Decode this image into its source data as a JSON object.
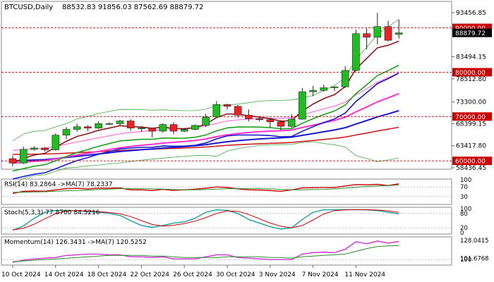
{
  "header": {
    "symbol": "BTCUSD,Daily",
    "ohlc": "88532.83 91856.03 87562.69 88879.72"
  },
  "colors": {
    "up_body": "#22bb22",
    "down_body": "#ee2222",
    "wick": "#222222",
    "ma_fast": "#8b1a1a",
    "ma_mid": "#1fa01f",
    "ma_slow": "#1a1acc",
    "ma_pink": "#ff33cc",
    "ma_red_long": "#cc2222",
    "band_upper": "#44aa44",
    "band_lower": "#44aa44",
    "band_mid": "#cc2222",
    "rsi_line": "#cc0000",
    "rsi_ma": "#2e8b2e",
    "stoch_main": "#1f9e9e",
    "stoch_signal": "#cc0000",
    "mom_line": "#cc33cc",
    "mom_ma": "#2e8b2e",
    "hline_red": "#cc0000",
    "label_red_bg": "#cc0000",
    "label_black_bg": "#000000"
  },
  "chart_data": [
    {
      "type": "candlestick",
      "title": "BTCUSD,Daily",
      "dates": [
        "2024-10-10",
        "2024-10-11",
        "2024-10-12",
        "2024-10-13",
        "2024-10-14",
        "2024-10-15",
        "2024-10-16",
        "2024-10-17",
        "2024-10-18",
        "2024-10-19",
        "2024-10-20",
        "2024-10-21",
        "2024-10-22",
        "2024-10-23",
        "2024-10-24",
        "2024-10-25",
        "2024-10-26",
        "2024-10-27",
        "2024-10-28",
        "2024-10-29",
        "2024-10-30",
        "2024-10-31",
        "2024-11-01",
        "2024-11-02",
        "2024-11-03",
        "2024-11-04",
        "2024-11-05",
        "2024-11-06",
        "2024-11-07",
        "2024-11-08",
        "2024-11-09",
        "2024-11-10",
        "2024-11-11",
        "2024-11-12",
        "2024-11-13",
        "2024-11-14",
        "2024-11-15"
      ],
      "candles": [
        [
          60500,
          61200,
          58800,
          59500
        ],
        [
          59500,
          63200,
          59300,
          62600
        ],
        [
          62600,
          63300,
          62300,
          62900
        ],
        [
          62900,
          63100,
          62100,
          62500
        ],
        [
          62500,
          66200,
          62300,
          65800
        ],
        [
          65800,
          67600,
          64900,
          67100
        ],
        [
          67100,
          68400,
          66600,
          67700
        ],
        [
          67700,
          68000,
          66700,
          67400
        ],
        [
          67400,
          68900,
          67200,
          68400
        ],
        [
          68400,
          68700,
          68100,
          68400
        ],
        [
          68400,
          69300,
          68000,
          69000
        ],
        [
          69000,
          69400,
          66800,
          67400
        ],
        [
          67400,
          67800,
          66600,
          67400
        ],
        [
          67400,
          67500,
          65300,
          66700
        ],
        [
          66700,
          68500,
          66400,
          68200
        ],
        [
          68200,
          68700,
          66000,
          66700
        ],
        [
          66700,
          67400,
          66500,
          67100
        ],
        [
          67100,
          68200,
          66900,
          68000
        ],
        [
          68000,
          70600,
          67600,
          69900
        ],
        [
          69900,
          73500,
          69800,
          72700
        ],
        [
          72700,
          72900,
          71600,
          72300
        ],
        [
          72300,
          72600,
          69700,
          70300
        ],
        [
          70300,
          71600,
          68900,
          69500
        ],
        [
          69500,
          69900,
          68900,
          69300
        ],
        [
          69300,
          69600,
          67500,
          68800
        ],
        [
          68800,
          69200,
          66900,
          67800
        ],
        [
          67800,
          70500,
          67500,
          69400
        ],
        [
          69400,
          76400,
          69300,
          75600
        ],
        [
          75600,
          76900,
          74600,
          75900
        ],
        [
          75900,
          77200,
          75600,
          76500
        ],
        [
          76500,
          76800,
          75800,
          76700
        ],
        [
          76700,
          81400,
          76500,
          80400
        ],
        [
          80400,
          89600,
          80200,
          88700
        ],
        [
          88700,
          89900,
          85100,
          87900
        ],
        [
          87900,
          93400,
          86300,
          90300
        ],
        [
          90300,
          91600,
          87000,
          87200
        ],
        [
          88532.83,
          91856.03,
          87562.69,
          88879.72
        ]
      ],
      "yticks": [
        "93456.85",
        "90000.00",
        "88879.72",
        "83494.15",
        "80000.00",
        "78512.80",
        "73300.00",
        "70000.00",
        "68399.15",
        "63417.80",
        "60000.00",
        "58436.45"
      ],
      "hlines": [
        {
          "value": 90000,
          "label": "90000.00"
        },
        {
          "value": 80000,
          "label": "80000.00"
        },
        {
          "value": 70000,
          "label": "70000.00"
        },
        {
          "value": 60000,
          "label": "60000.00"
        }
      ],
      "current_price": {
        "value": 88879.72,
        "label": "88879.72"
      },
      "ylim": [
        58436.45,
        95500
      ]
    },
    {
      "type": "line",
      "title": "RSI(14) 83.2864 ->MA(7) 78.2337",
      "yticks": [
        "100",
        "70",
        "30"
      ],
      "ylim": [
        0,
        100
      ],
      "series": [
        {
          "name": "RSI(14)",
          "values": [
            43,
            52,
            53,
            52,
            58,
            63,
            64,
            62,
            65,
            65,
            66,
            58,
            58,
            55,
            60,
            56,
            58,
            61,
            65,
            70,
            68,
            62,
            58,
            57,
            55,
            52,
            58,
            66,
            67,
            68,
            68,
            74,
            80,
            79,
            81,
            76,
            83.2864
          ]
        },
        {
          "name": "MA(7)",
          "values": [
            48,
            48,
            49,
            50,
            52,
            54,
            55,
            57,
            59,
            61,
            63,
            63,
            63,
            62,
            61,
            59,
            58,
            58,
            59,
            61,
            63,
            63,
            63,
            63,
            62,
            60,
            58,
            58,
            59,
            60,
            62,
            65,
            69,
            72,
            74,
            76,
            78.2337
          ]
        }
      ]
    },
    {
      "type": "line",
      "title": "Stoch(5,3,3) 77.8700 84.5216",
      "yticks": [
        "100",
        "80",
        "20",
        "0"
      ],
      "ylim": [
        0,
        100
      ],
      "series": [
        {
          "name": "Stoch %K",
          "values": [
            10,
            28,
            60,
            85,
            93,
            92,
            91,
            88,
            85,
            80,
            72,
            50,
            30,
            22,
            30,
            40,
            45,
            60,
            85,
            95,
            93,
            80,
            55,
            40,
            25,
            15,
            20,
            55,
            85,
            95,
            96,
            96,
            96,
            95,
            92,
            85,
            77.87
          ]
        },
        {
          "name": "Stoch %D",
          "values": [
            12,
            18,
            35,
            58,
            79,
            90,
            92,
            90,
            88,
            84,
            79,
            67,
            50,
            34,
            27,
            31,
            38,
            48,
            63,
            80,
            91,
            89,
            76,
            58,
            40,
            27,
            20,
            30,
            53,
            78,
            92,
            95,
            96,
            96,
            94,
            91,
            84.5216
          ]
        }
      ]
    },
    {
      "type": "line",
      "title": "Momentum(14) 126.3431 ->MA(7) 120.5252",
      "yticks": [
        "128.0415",
        "100",
        "101.6768"
      ],
      "ylim": [
        94,
        131
      ],
      "series": [
        {
          "name": "Momentum(14)",
          "values": [
            96,
            99,
            101,
            102,
            103,
            106,
            107,
            108,
            108,
            107,
            107,
            104,
            104,
            103,
            104,
            101,
            101,
            101,
            104,
            107,
            107,
            103,
            102,
            101,
            100,
            100,
            100,
            108,
            110,
            111,
            110,
            115,
            126,
            123,
            127,
            124,
            126.3431
          ]
        },
        {
          "name": "MA(7)",
          "values": [
            97,
            98,
            99,
            100,
            101,
            102,
            103,
            104,
            105,
            106,
            106,
            106,
            106,
            105,
            105,
            104,
            103,
            103,
            103,
            103,
            104,
            104,
            104,
            104,
            103,
            103,
            102,
            104,
            105,
            106,
            107,
            108,
            112,
            116,
            119,
            120,
            120.5252
          ]
        }
      ]
    }
  ],
  "xaxis": {
    "labels": [
      "10 Oct 2024",
      "14 Oct 2024",
      "18 Oct 2024",
      "22 Oct 2024",
      "26 Oct 2024",
      "30 Oct 2024",
      "3 Nov 2024",
      "7 Nov 2024",
      "11 Nov 2024"
    ]
  }
}
